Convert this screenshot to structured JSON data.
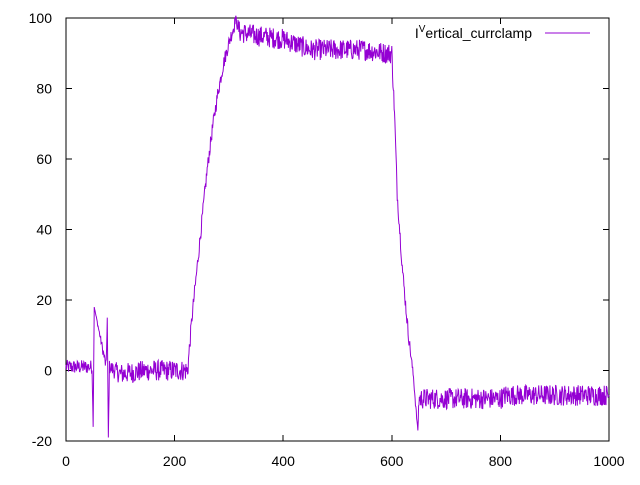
{
  "chart_data": {
    "type": "line",
    "title": "",
    "xlabel": "",
    "ylabel": "",
    "xlim": [
      0,
      1000
    ],
    "ylim": [
      -20,
      100
    ],
    "x_ticks": [
      0,
      200,
      400,
      600,
      800,
      1000
    ],
    "y_ticks": [
      -20,
      0,
      20,
      40,
      60,
      80,
      100
    ],
    "x_tick_labels": [
      "0",
      "200",
      "400",
      "600",
      "800",
      "1000"
    ],
    "y_tick_labels": [
      "-20",
      "0",
      "20",
      "40",
      "60",
      "80",
      "100"
    ],
    "grid": false,
    "legend": {
      "position": "top-right",
      "label_prefix": "I",
      "label_superscript": "V",
      "label_rest": "ertical_currclamp"
    },
    "series": [
      {
        "name": "IVertical_currclamp",
        "color": "#9400d3",
        "noise": true,
        "x": [
          0,
          48,
          50,
          52,
          74,
          76,
          78,
          80,
          100,
          150,
          200,
          224,
          232,
          240,
          250,
          260,
          270,
          280,
          290,
          300,
          310,
          312,
          320,
          350,
          400,
          450,
          500,
          550,
          590,
          600,
          605,
          610,
          620,
          630,
          640,
          645,
          648,
          650,
          660,
          700,
          750,
          800,
          810,
          830,
          900,
          1000
        ],
        "y": [
          1,
          1,
          -16,
          18,
          1,
          15,
          -19,
          1,
          -1,
          0,
          0,
          0,
          15,
          27,
          42,
          57,
          69,
          79,
          87,
          93,
          98,
          100,
          96,
          95,
          94,
          91,
          91,
          91,
          90,
          90,
          73,
          50,
          28,
          11,
          -2,
          -12,
          -17,
          -8,
          -8,
          -8,
          -8,
          -8,
          -7,
          -7,
          -7,
          -7
        ],
        "noise_amplitude": [
          2,
          2,
          0,
          0,
          2,
          0,
          0,
          2,
          3,
          3,
          3,
          3,
          2,
          2,
          2,
          2,
          2,
          2,
          2,
          2,
          2,
          1,
          3,
          3,
          3,
          3,
          3,
          3,
          3,
          3,
          2,
          2,
          2,
          2,
          1,
          1,
          0,
          3,
          3,
          3,
          3,
          3,
          3,
          3,
          3,
          3
        ]
      }
    ]
  }
}
